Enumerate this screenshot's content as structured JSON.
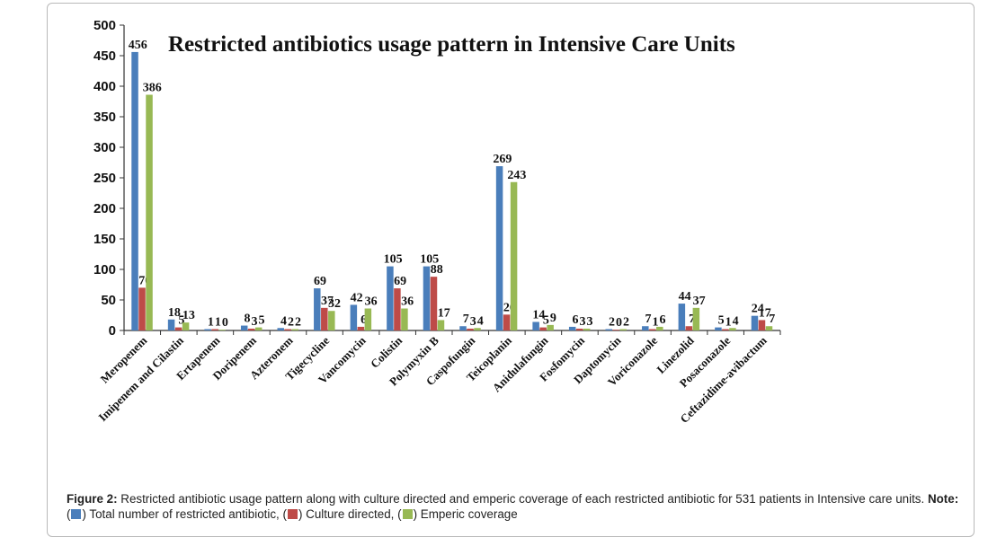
{
  "chart_data": {
    "type": "bar",
    "title": "Restricted antibiotics usage pattern in Intensive Care Units",
    "xlabel": "",
    "ylabel": "",
    "ylim": [
      0,
      500
    ],
    "yticks": [
      0,
      50,
      100,
      150,
      200,
      250,
      300,
      350,
      400,
      450,
      500
    ],
    "grid": false,
    "categories": [
      "Meropenem",
      "Imipenem and Cilastin",
      "Ertapenem",
      "Doripenem",
      "Azteronem",
      "Tigecycline",
      "Vancomycin",
      "Colistin",
      "Polymyxin B",
      "Caspofungin",
      "Teicoplanin",
      "Anidulafungin",
      "Fosfomycin",
      "Daptomycin",
      "Voriconazole",
      "Linezolid",
      "Posaconazole",
      "Ceftazidime-avibactum"
    ],
    "series": [
      {
        "name": "Total number of restricted antibiotic",
        "color": "#4a7ebb",
        "values": [
          456,
          18,
          1,
          8,
          4,
          69,
          42,
          105,
          105,
          7,
          269,
          14,
          6,
          2,
          7,
          44,
          5,
          24
        ]
      },
      {
        "name": "Culture directed",
        "color": "#be4b48",
        "values": [
          70,
          5,
          1,
          3,
          2,
          37,
          6,
          69,
          88,
          3,
          26,
          5,
          3,
          0,
          1,
          7,
          1,
          17
        ]
      },
      {
        "name": "Emperic coverage",
        "color": "#98b954",
        "values": [
          386,
          13,
          0,
          5,
          2,
          32,
          36,
          36,
          17,
          4,
          243,
          9,
          3,
          2,
          6,
          37,
          4,
          7
        ]
      }
    ]
  },
  "caption": {
    "figure_label": "Figure 2:",
    "text": " Restricted antibiotic usage pattern along with culture directed and emperic coverage of each restricted antibiotic for 531 patients in Intensive care units. ",
    "note_label": "Note:",
    "legend_prefix": " (",
    "legend_items": [
      {
        "text": ") Total number of restricted antibiotic, (",
        "color": "#4a7ebb"
      },
      {
        "text": ") Culture directed, (",
        "color": "#be4b48"
      },
      {
        "text": ") Emperic coverage",
        "color": "#98b954"
      }
    ]
  }
}
